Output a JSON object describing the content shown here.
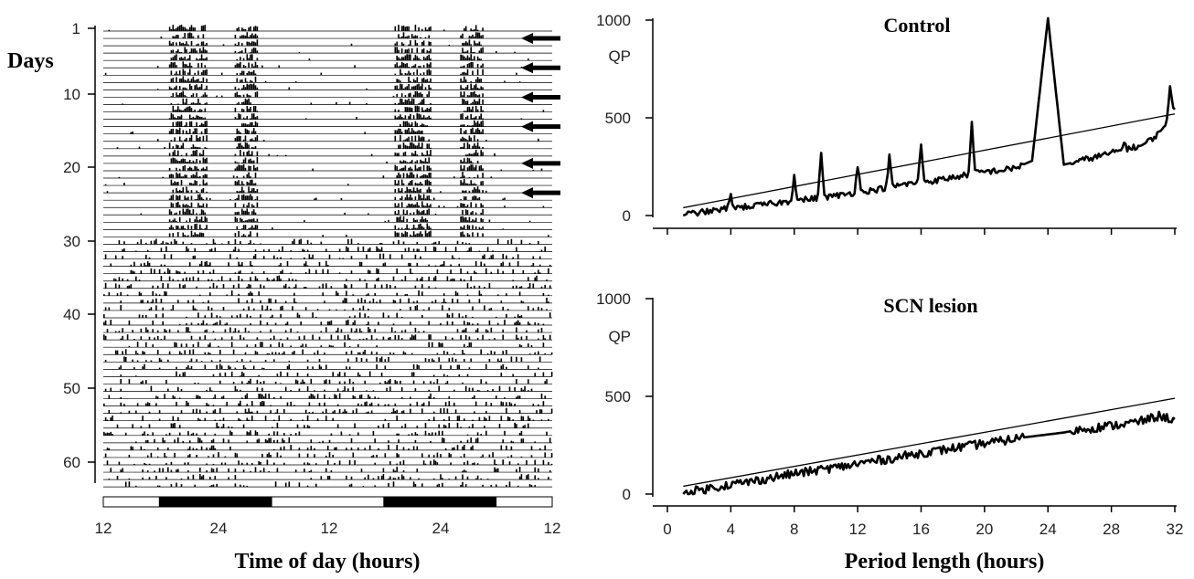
{
  "chart_data": [
    {
      "type": "actogram",
      "ylabel": "Days",
      "xlabel": "Time of day (hours)",
      "y_ticks": [
        "1",
        "10",
        "20",
        "30",
        "40",
        "50",
        "60"
      ],
      "x_ticks": [
        "12",
        "24",
        "12",
        "24",
        "12"
      ],
      "days": 63,
      "x_range_hours": [
        12,
        60
      ],
      "light_dark_bar": [
        {
          "from": 12,
          "to": 18,
          "phase": "light"
        },
        {
          "from": 18,
          "to": 30,
          "phase": "dark"
        },
        {
          "from": 30,
          "to": 42,
          "phase": "light"
        },
        {
          "from": 42,
          "to": 54,
          "phase": "dark"
        },
        {
          "from": 54,
          "to": 60,
          "phase": "light"
        }
      ],
      "arrow_days": [
        2,
        6,
        10,
        14,
        19,
        23
      ],
      "rhythmic_days": [
        1,
        29
      ],
      "arrhythmic_days": [
        30,
        63
      ]
    },
    {
      "type": "line",
      "title": "Control",
      "ylabel": "QP",
      "xlim": [
        0,
        32
      ],
      "ylim": [
        0,
        1000
      ],
      "y_ticks": [
        "0",
        "500",
        "1000"
      ],
      "x_ticks": [],
      "series": [
        {
          "x": [
            1,
            2,
            3,
            4,
            5,
            6,
            7,
            8,
            9,
            10,
            11,
            12,
            13,
            14,
            15,
            16,
            17,
            18,
            19,
            20,
            21,
            22,
            23,
            24,
            25,
            26,
            27,
            28,
            29,
            30,
            31,
            32
          ],
          "y": [
            5,
            15,
            25,
            40,
            45,
            55,
            65,
            75,
            85,
            95,
            105,
            120,
            130,
            145,
            160,
            170,
            180,
            195,
            210,
            225,
            230,
            245,
            280,
            1010,
            260,
            280,
            300,
            320,
            340,
            360,
            420,
            550
          ]
        },
        {
          "x": [
            1,
            32
          ],
          "y": [
            40,
            520
          ]
        }
      ],
      "peaks": [
        {
          "x": 4,
          "y": 100
        },
        {
          "x": 8,
          "y": 210
        },
        {
          "x": 9.7,
          "y": 320
        },
        {
          "x": 12,
          "y": 260
        },
        {
          "x": 14,
          "y": 300
        },
        {
          "x": 16,
          "y": 370
        },
        {
          "x": 19.2,
          "y": 470
        },
        {
          "x": 24,
          "y": 1040
        },
        {
          "x": 28.8,
          "y": 380
        },
        {
          "x": 31.7,
          "y": 650
        }
      ]
    },
    {
      "type": "line",
      "title": "SCN lesion",
      "ylabel": "QP",
      "xlabel": "Period length (hours)",
      "xlim": [
        0,
        32
      ],
      "ylim": [
        0,
        1000
      ],
      "y_ticks": [
        "0",
        "500",
        "1000"
      ],
      "x_ticks": [
        "0",
        "4",
        "8",
        "12",
        "16",
        "20",
        "24",
        "28",
        "32"
      ],
      "series": [
        {
          "x": [
            1,
            2,
            3,
            4,
            5,
            6,
            7,
            8,
            9,
            10,
            11,
            12,
            13,
            14,
            15,
            16,
            17,
            18,
            19,
            20,
            21,
            22,
            23,
            24,
            25,
            26,
            27,
            28,
            29,
            30,
            31,
            32
          ],
          "y": [
            5,
            20,
            35,
            50,
            60,
            75,
            90,
            105,
            115,
            130,
            140,
            155,
            170,
            180,
            195,
            210,
            220,
            235,
            245,
            260,
            270,
            285,
            295,
            305,
            315,
            330,
            340,
            350,
            360,
            375,
            400,
            380
          ]
        },
        {
          "x": [
            1,
            32
          ],
          "y": [
            40,
            490
          ]
        }
      ]
    }
  ]
}
